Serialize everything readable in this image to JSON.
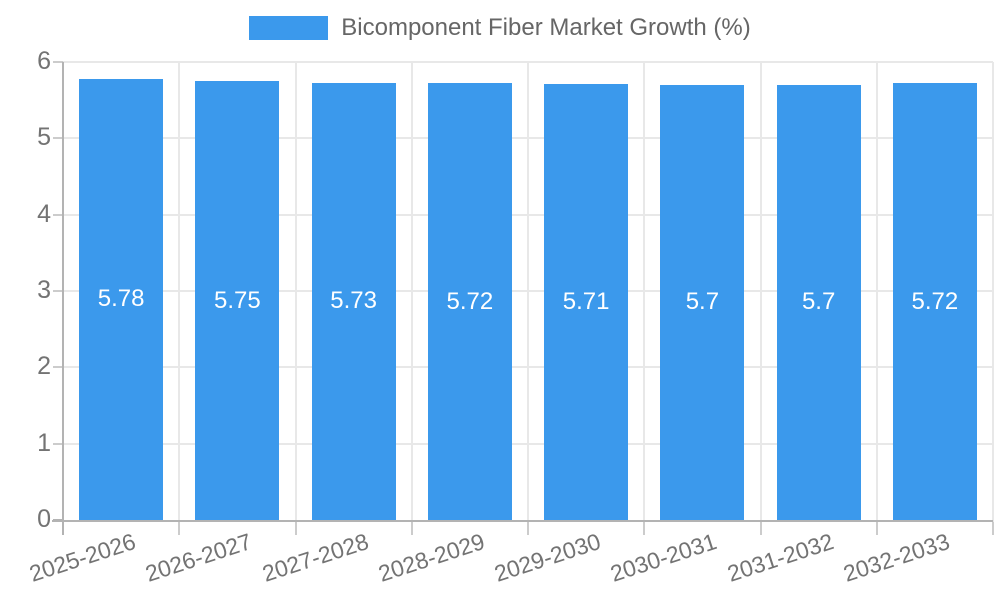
{
  "legend": {
    "label": "Bicomponent Fiber Market Growth (%)"
  },
  "chart_data": {
    "type": "bar",
    "title": "Bicomponent Fiber Market Growth (%)",
    "categories": [
      "2025-2026",
      "2026-2027",
      "2027-2028",
      "2028-2029",
      "2029-2030",
      "2030-2031",
      "2031-2032",
      "2032-2033"
    ],
    "series": [
      {
        "name": "Bicomponent Fiber Market Growth (%)",
        "values": [
          5.78,
          5.75,
          5.73,
          5.72,
          5.71,
          5.7,
          5.7,
          5.72
        ]
      }
    ],
    "bar_value_labels": [
      "5.78",
      "5.75",
      "5.73",
      "5.72",
      "5.71",
      "5.7",
      "5.7",
      "5.72"
    ],
    "xlabel": "",
    "ylabel": "",
    "ylim": [
      0,
      6
    ],
    "yticks": [
      0,
      1,
      2,
      3,
      4,
      5,
      6
    ],
    "grid": true,
    "legend_position": "top",
    "colors": {
      "bar": "#3B99EC",
      "bar_label_text": "#FFFFFF",
      "gridline": "#E8E8E8",
      "axis_line": "#B3B3B3",
      "tick_mark": "#CCCCCC",
      "tick_text": "#737373",
      "legend_text": "#666666",
      "background": "#FFFFFF"
    }
  }
}
